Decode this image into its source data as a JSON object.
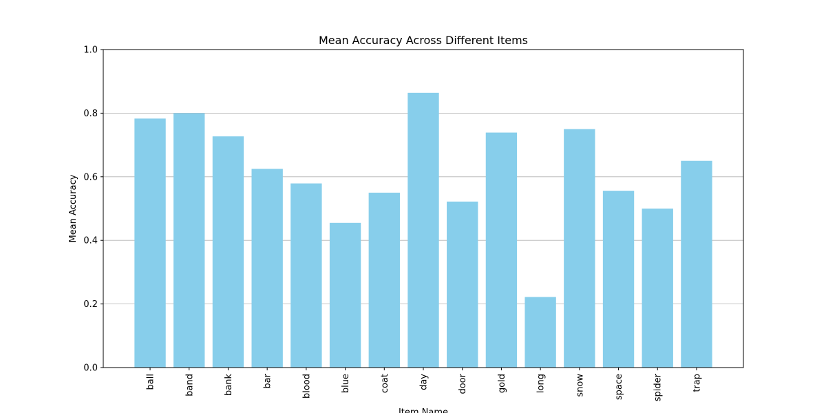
{
  "chart_data": {
    "type": "bar",
    "title": "Mean Accuracy Across Different Items",
    "xlabel": "Item Name",
    "ylabel": "Mean Accuracy",
    "categories": [
      "ball",
      "band",
      "bank",
      "bar",
      "blood",
      "blue",
      "coat",
      "day",
      "door",
      "gold",
      "long",
      "snow",
      "space",
      "spider",
      "trap"
    ],
    "values": [
      0.783,
      0.8,
      0.727,
      0.625,
      0.579,
      0.455,
      0.55,
      0.864,
      0.522,
      0.739,
      0.222,
      0.75,
      0.556,
      0.5,
      0.65
    ],
    "ylim": [
      0.0,
      1.0
    ],
    "yticks": [
      "0.0",
      "0.2",
      "0.4",
      "0.6",
      "0.8",
      "1.0"
    ],
    "grid": "horizontal",
    "bar_color": "#87CEEB",
    "grid_color": "#b0b0b0",
    "axis_color": "#000000"
  }
}
